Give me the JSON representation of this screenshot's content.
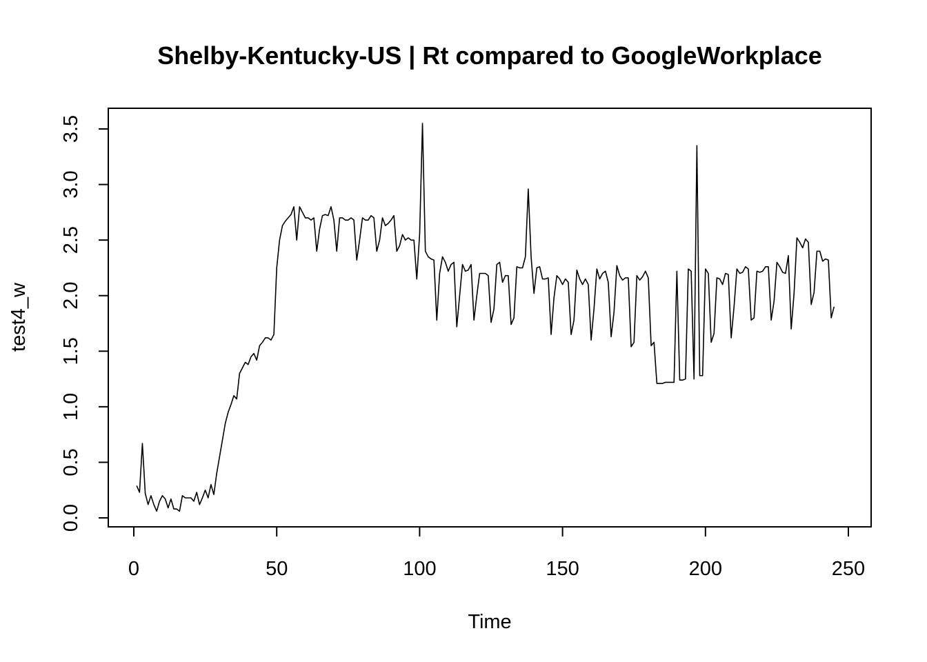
{
  "chart_data": {
    "type": "line",
    "title": "Shelby-Kentucky-US | Rt compared to GoogleWorkplace",
    "xlabel": "Time",
    "ylabel": "test4_w",
    "xlim": [
      0,
      250
    ],
    "ylim": [
      0,
      3.5
    ],
    "x_ticks": [
      0,
      50,
      100,
      150,
      200,
      250
    ],
    "y_ticks": [
      0.0,
      0.5,
      1.0,
      1.5,
      2.0,
      2.5,
      3.0,
      3.5
    ],
    "x_tick_labels": [
      "0",
      "50",
      "100",
      "150",
      "200",
      "250"
    ],
    "y_tick_labels": [
      "0.0",
      "0.5",
      "1.0",
      "1.5",
      "2.0",
      "2.5",
      "3.0",
      "3.5"
    ],
    "grid": false,
    "legend": "none",
    "line_color": "#000000",
    "series": [
      {
        "x_start": 1,
        "x_step": 1,
        "values": [
          0.29,
          0.23,
          0.67,
          0.22,
          0.12,
          0.2,
          0.12,
          0.06,
          0.15,
          0.2,
          0.17,
          0.09,
          0.17,
          0.08,
          0.08,
          0.06,
          0.2,
          0.18,
          0.18,
          0.18,
          0.15,
          0.23,
          0.12,
          0.18,
          0.25,
          0.18,
          0.3,
          0.21,
          0.4,
          0.55,
          0.7,
          0.85,
          0.95,
          1.02,
          1.1,
          1.07,
          1.3,
          1.35,
          1.4,
          1.38,
          1.45,
          1.48,
          1.42,
          1.55,
          1.58,
          1.62,
          1.62,
          1.6,
          1.65,
          2.25,
          2.5,
          2.63,
          2.67,
          2.7,
          2.73,
          2.8,
          2.5,
          2.8,
          2.75,
          2.7,
          2.7,
          2.68,
          2.7,
          2.4,
          2.6,
          2.72,
          2.73,
          2.72,
          2.8,
          2.68,
          2.4,
          2.7,
          2.7,
          2.68,
          2.68,
          2.7,
          2.68,
          2.32,
          2.5,
          2.7,
          2.68,
          2.68,
          2.72,
          2.7,
          2.4,
          2.5,
          2.7,
          2.63,
          2.65,
          2.68,
          2.72,
          2.4,
          2.45,
          2.55,
          2.5,
          2.52,
          2.5,
          2.5,
          2.15,
          2.55,
          3.55,
          2.4,
          2.35,
          2.33,
          2.32,
          1.78,
          2.2,
          2.35,
          2.3,
          2.22,
          2.28,
          2.3,
          1.72,
          2.0,
          2.28,
          2.22,
          2.23,
          2.28,
          1.78,
          2.0,
          2.2,
          2.2,
          2.2,
          2.18,
          1.76,
          1.88,
          2.28,
          2.3,
          2.12,
          2.18,
          2.18,
          1.74,
          1.8,
          2.26,
          2.25,
          2.25,
          2.35,
          2.96,
          2.35,
          2.02,
          2.25,
          2.26,
          2.15,
          2.15,
          2.16,
          1.65,
          1.98,
          2.18,
          2.15,
          2.1,
          2.15,
          2.12,
          1.65,
          1.78,
          2.23,
          2.15,
          2.1,
          2.15,
          2.1,
          1.6,
          1.88,
          2.24,
          2.15,
          2.2,
          2.22,
          2.12,
          1.63,
          1.85,
          2.27,
          2.18,
          2.14,
          2.16,
          2.16,
          1.54,
          1.58,
          2.18,
          2.14,
          2.17,
          2.22,
          2.16,
          1.55,
          1.58,
          1.21,
          1.21,
          1.21,
          1.22,
          1.22,
          1.22,
          1.22,
          2.22,
          1.24,
          1.24,
          1.25,
          2.24,
          2.22,
          1.25,
          3.35,
          1.28,
          1.28,
          2.24,
          2.2,
          1.58,
          1.66,
          2.16,
          2.15,
          2.1,
          2.2,
          2.19,
          1.62,
          1.9,
          2.24,
          2.2,
          2.21,
          2.26,
          2.24,
          1.78,
          1.8,
          2.22,
          2.21,
          2.22,
          2.26,
          2.26,
          1.78,
          1.95,
          2.3,
          2.26,
          2.21,
          2.2,
          2.36,
          1.7,
          2.02,
          2.52,
          2.48,
          2.43,
          2.51,
          2.48,
          1.92,
          2.03,
          2.4,
          2.4,
          2.31,
          2.33,
          2.32,
          1.8,
          1.9
        ]
      }
    ]
  }
}
